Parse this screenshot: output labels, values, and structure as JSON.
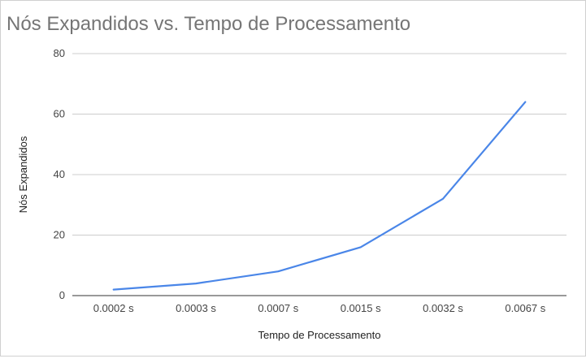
{
  "chart_data": {
    "type": "line",
    "title": "Nós Expandidos vs. Tempo de Processamento",
    "xlabel": "Tempo de Processamento",
    "ylabel": "Nós Expandidos",
    "categories": [
      "0.0002 s",
      "0.0003 s",
      "0.0007 s",
      "0.0015 s",
      "0.0032 s",
      "0.0067 s"
    ],
    "series": [
      {
        "values": [
          2,
          4,
          8,
          16,
          32,
          64
        ]
      }
    ],
    "ylim": [
      0,
      80
    ],
    "yticks": [
      0,
      20,
      40,
      60,
      80
    ],
    "grid": true,
    "colors": {
      "line": "#4a86e8",
      "grid": "#cccccc",
      "axis": "#333333"
    }
  }
}
